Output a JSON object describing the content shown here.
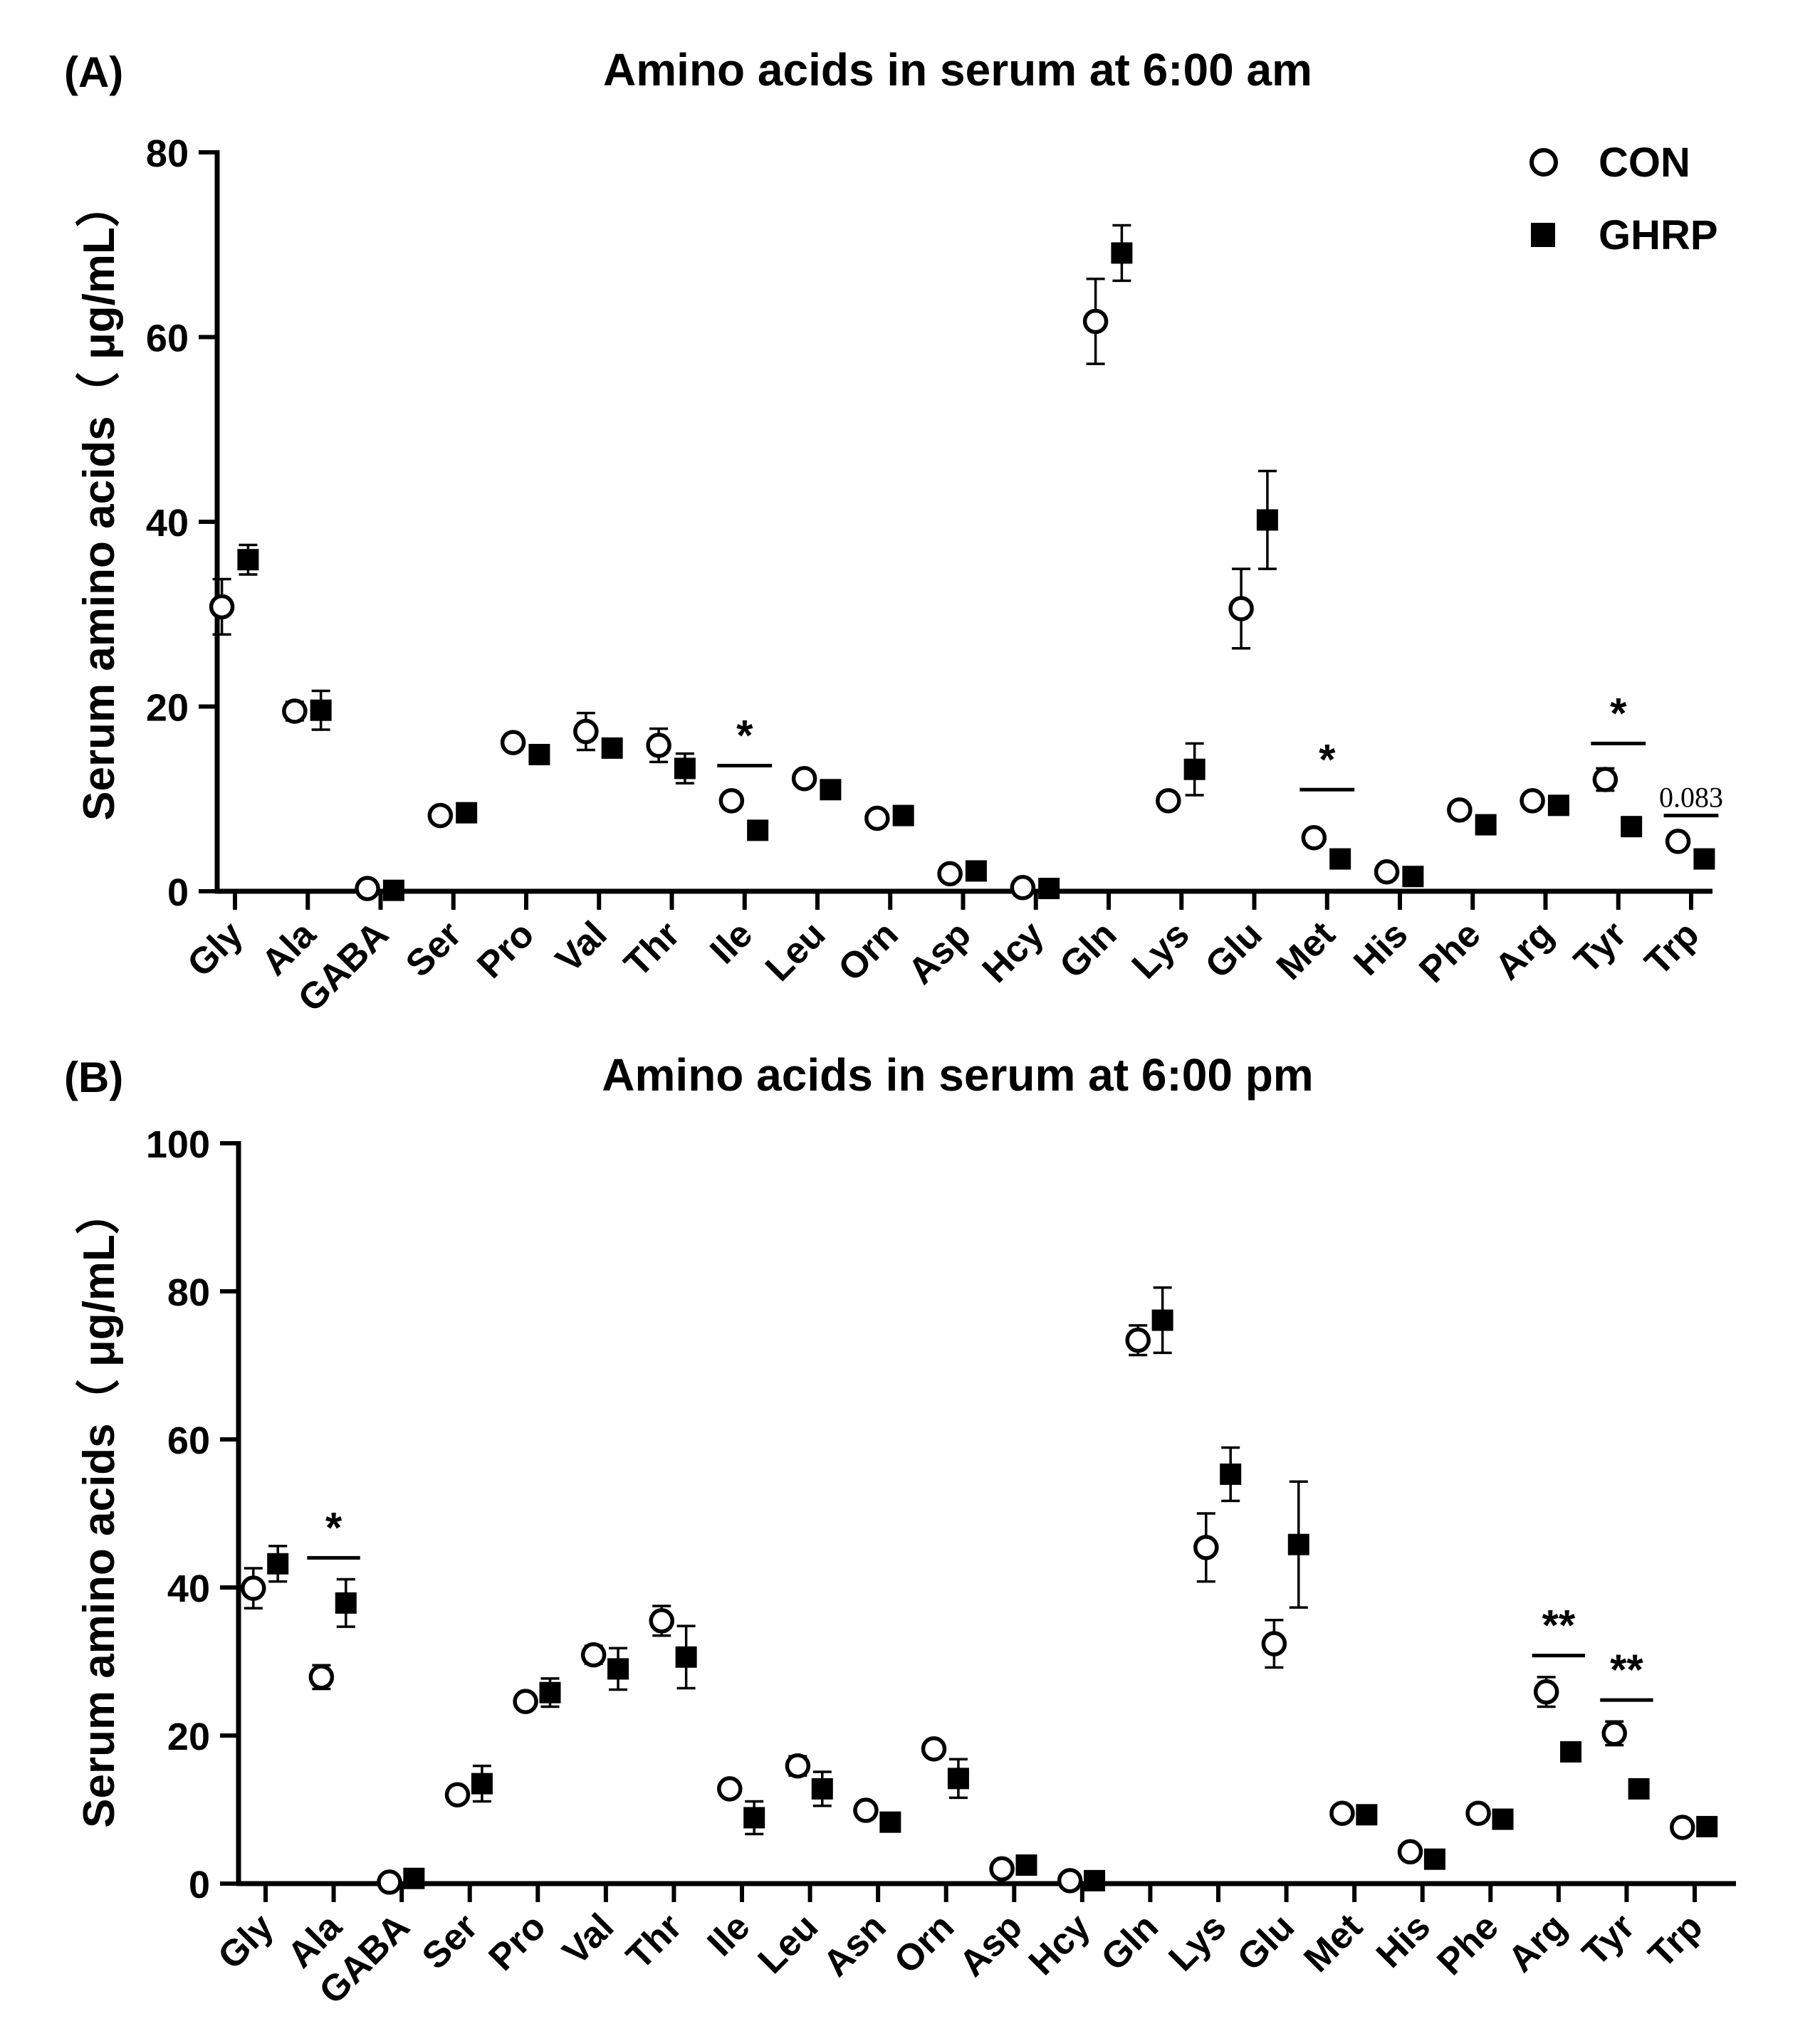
{
  "legend": {
    "entries": [
      {
        "name": "CON",
        "marker": "open-circle"
      },
      {
        "name": "GHRP",
        "marker": "filled-square"
      }
    ],
    "position": "top-right of panel A"
  },
  "chart_data": [
    {
      "type": "scatter",
      "panel_label": "(A)",
      "title": "Amino acids in serum at 6:00 am",
      "xlabel": "",
      "ylabel": "Serum amino acids（ μg/mL）",
      "ylim": [
        0,
        80
      ],
      "yticks": [
        0,
        20,
        40,
        60,
        80
      ],
      "categories": [
        "Gly",
        "Ala",
        "GABA",
        "Ser",
        "Pro",
        "Val",
        "Thr",
        "Ile",
        "Leu",
        "Orn",
        "Asp",
        "Hcy",
        "Gln",
        "Lys",
        "Glu",
        "Met",
        "His",
        "Phe",
        "Arg",
        "Tyr",
        "Trp"
      ],
      "series": [
        {
          "name": "CON",
          "values": [
            30.8,
            19.5,
            0.3,
            8.2,
            16.1,
            17.3,
            15.8,
            9.8,
            12.2,
            7.9,
            1.9,
            0.4,
            61.7,
            9.8,
            30.6,
            5.8,
            2.1,
            8.8,
            9.8,
            12.1,
            5.4
          ],
          "errors": [
            3.0,
            1.0,
            0.2,
            0.5,
            0.8,
            2.0,
            1.8,
            0.8,
            0.8,
            0.6,
            0.5,
            0.3,
            4.6,
            0.6,
            4.3,
            0.8,
            0.5,
            0.6,
            0.7,
            1.2,
            0.7
          ]
        },
        {
          "name": "GHRP",
          "values": [
            35.9,
            19.6,
            0.1,
            8.5,
            14.8,
            15.5,
            13.3,
            6.6,
            11.0,
            8.2,
            2.2,
            0.3,
            69.1,
            13.2,
            40.2,
            3.5,
            1.6,
            7.2,
            9.3,
            7.0,
            3.5
          ],
          "errors": [
            1.6,
            2.1,
            0.1,
            0.4,
            0.6,
            0.6,
            1.6,
            0.3,
            0.6,
            0.5,
            0.3,
            0.2,
            3.0,
            2.8,
            5.3,
            0.3,
            0.3,
            0.4,
            0.5,
            0.4,
            0.3
          ]
        }
      ],
      "annotations": [
        {
          "category": "Ile",
          "text": "*",
          "bar_y": 13.6
        },
        {
          "category": "Met",
          "text": "*",
          "bar_y": 11.0
        },
        {
          "category": "Tyr",
          "text": "*",
          "bar_y": 16.0
        },
        {
          "category": "Trp",
          "text": "0.083",
          "bar_y": 8.2
        }
      ]
    },
    {
      "type": "scatter",
      "panel_label": "(B)",
      "title": "Amino acids in serum at 6:00 pm",
      "xlabel": "",
      "ylabel": "Serum amino acids（ μg/mL）",
      "ylim": [
        0,
        100
      ],
      "yticks": [
        0,
        20,
        40,
        60,
        80,
        100
      ],
      "categories": [
        "Gly",
        "Ala",
        "GABA",
        "Ser",
        "Pro",
        "Val",
        "Thr",
        "Ile",
        "Leu",
        "Asn",
        "Orn",
        "Asp",
        "Hcy",
        "Gln",
        "Lys",
        "Glu",
        "Met",
        "His",
        "Phe",
        "Arg",
        "Tyr",
        "Trp"
      ],
      "series": [
        {
          "name": "CON",
          "values": [
            39.9,
            27.9,
            0.2,
            12.0,
            24.6,
            30.9,
            35.5,
            12.8,
            15.9,
            9.9,
            18.2,
            2.0,
            0.4,
            73.4,
            45.4,
            32.4,
            9.5,
            4.3,
            9.5,
            25.9,
            20.3,
            7.6
          ],
          "errors": [
            2.7,
            1.6,
            0.2,
            0.6,
            0.8,
            1.2,
            2.0,
            1.0,
            1.3,
            0.7,
            1.0,
            0.4,
            0.3,
            2.0,
            4.6,
            3.2,
            0.6,
            0.5,
            0.6,
            2.0,
            1.6,
            0.6
          ]
        },
        {
          "name": "GHRP",
          "values": [
            43.2,
            37.9,
            0.7,
            13.5,
            25.8,
            29.0,
            30.6,
            8.9,
            12.8,
            8.3,
            14.2,
            2.5,
            0.4,
            76.1,
            55.3,
            45.8,
            9.3,
            3.3,
            8.7,
            17.8,
            12.8,
            7.7
          ],
          "errors": [
            2.4,
            3.2,
            0.4,
            2.4,
            1.9,
            2.8,
            4.2,
            2.2,
            2.3,
            1.0,
            2.6,
            0.5,
            0.3,
            4.4,
            3.6,
            8.5,
            0.6,
            0.4,
            0.5,
            0.5,
            0.5,
            0.5
          ]
        }
      ],
      "annotations": [
        {
          "category": "Ala",
          "text": "*",
          "bar_y": 44.0
        },
        {
          "category": "Arg",
          "text": "**",
          "bar_y": 30.8
        },
        {
          "category": "Tyr",
          "text": "**",
          "bar_y": 24.8
        }
      ]
    }
  ]
}
